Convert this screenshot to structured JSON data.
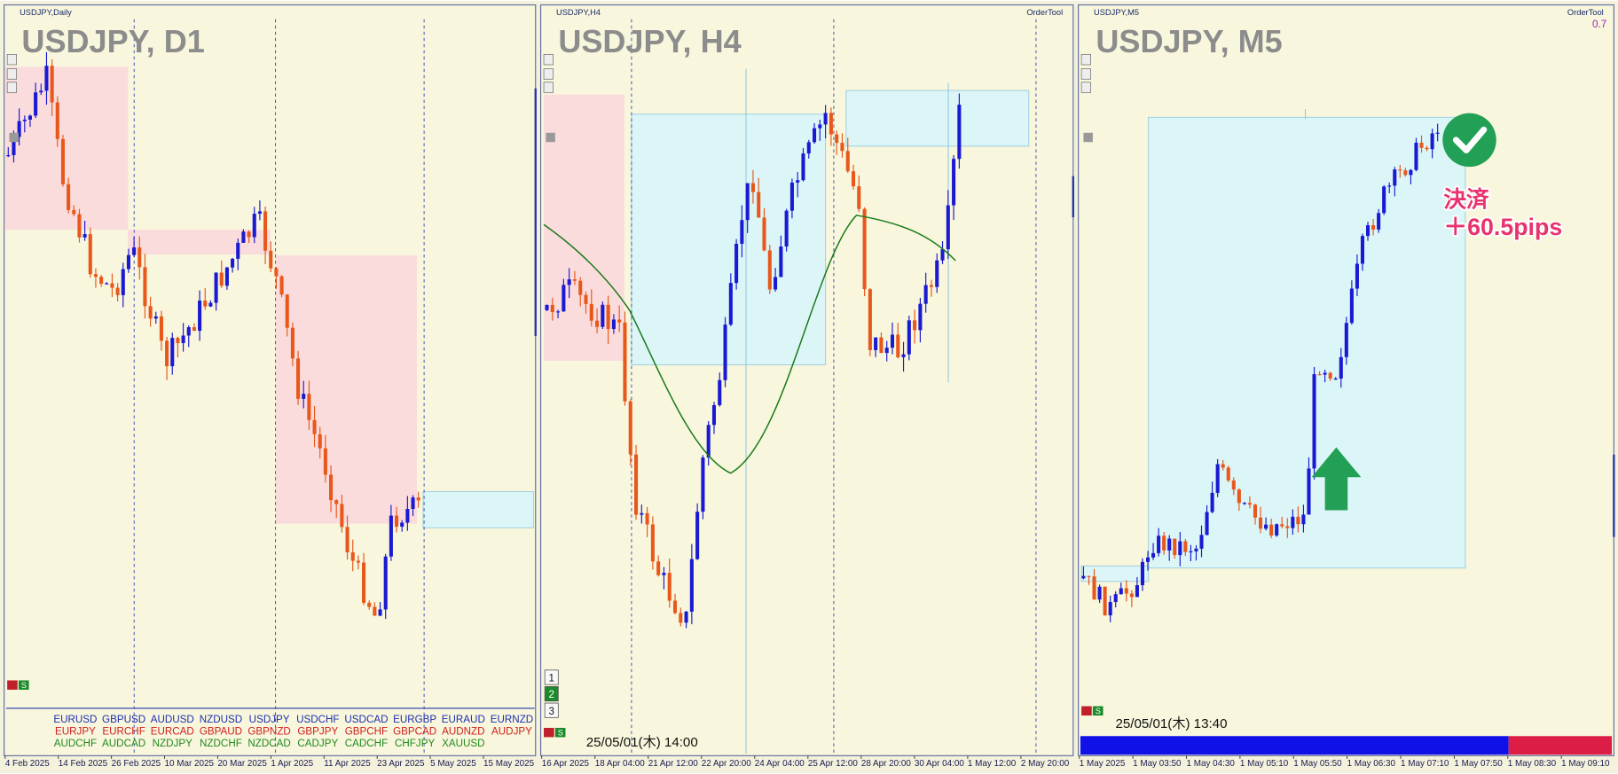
{
  "panels": [
    {
      "window_label": "USDJPY,Daily",
      "title": "USDJPY, D1",
      "mini_button": "S",
      "x_labels": [
        "4 Feb 2025",
        "14 Feb 2025",
        "26 Feb 2025",
        "10 Mar 2025",
        "20 Mar 2025",
        "1 Apr 2025",
        "11 Apr 2025",
        "23 Apr 2025",
        "5 May 2025",
        "15 May 2025"
      ],
      "pairs": [
        {
          "color": "#1f2fb0",
          "names": [
            "EURUSD",
            "GBPUSD",
            "AUDUSD",
            "NZDUSD",
            "USDJPY",
            "USDCHF",
            "USDCAD",
            "EURGBP",
            "EURAUD",
            "EURNZD"
          ]
        },
        {
          "color": "#d02020",
          "names": [
            "EURJPY",
            "EURCHF",
            "EURCAD",
            "GBPAUD",
            "GBPNZD",
            "GBPJPY",
            "GBPCHF",
            "GBPCAD",
            "AUDNZD",
            "AUDJPY"
          ]
        },
        {
          "color": "#1f8a1f",
          "names": [
            "AUDCHF",
            "AUDCAD",
            "NZDJPY",
            "NZDCHF",
            "NZDCAD",
            "CADJPY",
            "CADCHF",
            "CHFJPY",
            "XAUUSD"
          ]
        }
      ]
    },
    {
      "window_label": "USDJPY,H4",
      "title": "USDJPY, H4",
      "tool": "OrderTool",
      "mini_button": "S",
      "timestamp": "25/05/01(木) 14:00",
      "buttons": [
        "1",
        "2",
        "3"
      ],
      "x_labels": [
        "16 Apr 2025",
        "18 Apr 04:00",
        "21 Apr 12:00",
        "22 Apr 20:00",
        "24 Apr 04:00",
        "25 Apr 12:00",
        "28 Apr 20:00",
        "30 Apr 04:00",
        "1 May 12:00",
        "2 May 20:00"
      ]
    },
    {
      "window_label": "USDJPY,M5",
      "title": "USDJPY, M5",
      "tool": "OrderTool",
      "mini_button": "S",
      "corner_value": "0.7",
      "timestamp": "25/05/01(木) 13:40",
      "annotation": [
        "決済",
        "＋60.5pips"
      ],
      "x_labels": [
        "1 May 2025",
        "1 May 03:50",
        "1 May 04:30",
        "1 May 05:10",
        "1 May 05:50",
        "1 May 06:30",
        "1 May 07:10",
        "1 May 07:50",
        "1 May 08:30",
        "1 May 09:10"
      ]
    }
  ]
}
